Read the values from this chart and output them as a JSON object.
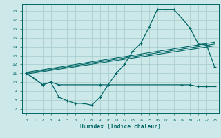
{
  "bg_color": "#cce8e8",
  "grid_color": "#aacfcf",
  "line_color": "#006666",
  "xlabel": "Humidex (Indice chaleur)",
  "xlim": [
    -0.5,
    23.5
  ],
  "ylim": [
    6.5,
    18.8
  ],
  "yticks": [
    7,
    8,
    9,
    10,
    11,
    12,
    13,
    14,
    15,
    16,
    17,
    18
  ],
  "xticks": [
    0,
    1,
    2,
    3,
    4,
    5,
    6,
    7,
    8,
    9,
    10,
    11,
    12,
    13,
    14,
    15,
    16,
    17,
    18,
    19,
    20,
    21,
    22,
    23
  ],
  "line1_x": [
    0,
    1,
    2,
    3,
    4,
    5,
    6,
    7,
    8,
    9,
    10,
    11,
    12,
    13,
    14,
    15,
    16,
    17,
    18,
    19,
    20,
    21,
    22,
    23
  ],
  "line1_y": [
    11.0,
    10.4,
    9.7,
    10.0,
    8.3,
    7.9,
    7.6,
    7.6,
    7.4,
    8.3,
    9.7,
    11.0,
    12.0,
    13.5,
    14.4,
    16.2,
    18.2,
    18.2,
    18.2,
    17.2,
    16.1,
    14.3,
    14.2,
    11.7
  ],
  "line2_x": [
    0,
    1,
    2,
    3,
    4,
    9,
    19,
    20,
    21,
    22,
    23
  ],
  "line2_y": [
    11.0,
    10.4,
    9.7,
    10.0,
    9.7,
    9.7,
    9.7,
    9.7,
    9.5,
    9.5,
    9.5
  ],
  "line3_x": [
    0,
    23
  ],
  "line3_y": [
    11.0,
    14.3
  ],
  "line4_x": [
    0,
    23
  ],
  "line4_y": [
    11.1,
    14.5
  ],
  "line5_x": [
    0,
    23
  ],
  "line5_y": [
    10.9,
    14.1
  ]
}
